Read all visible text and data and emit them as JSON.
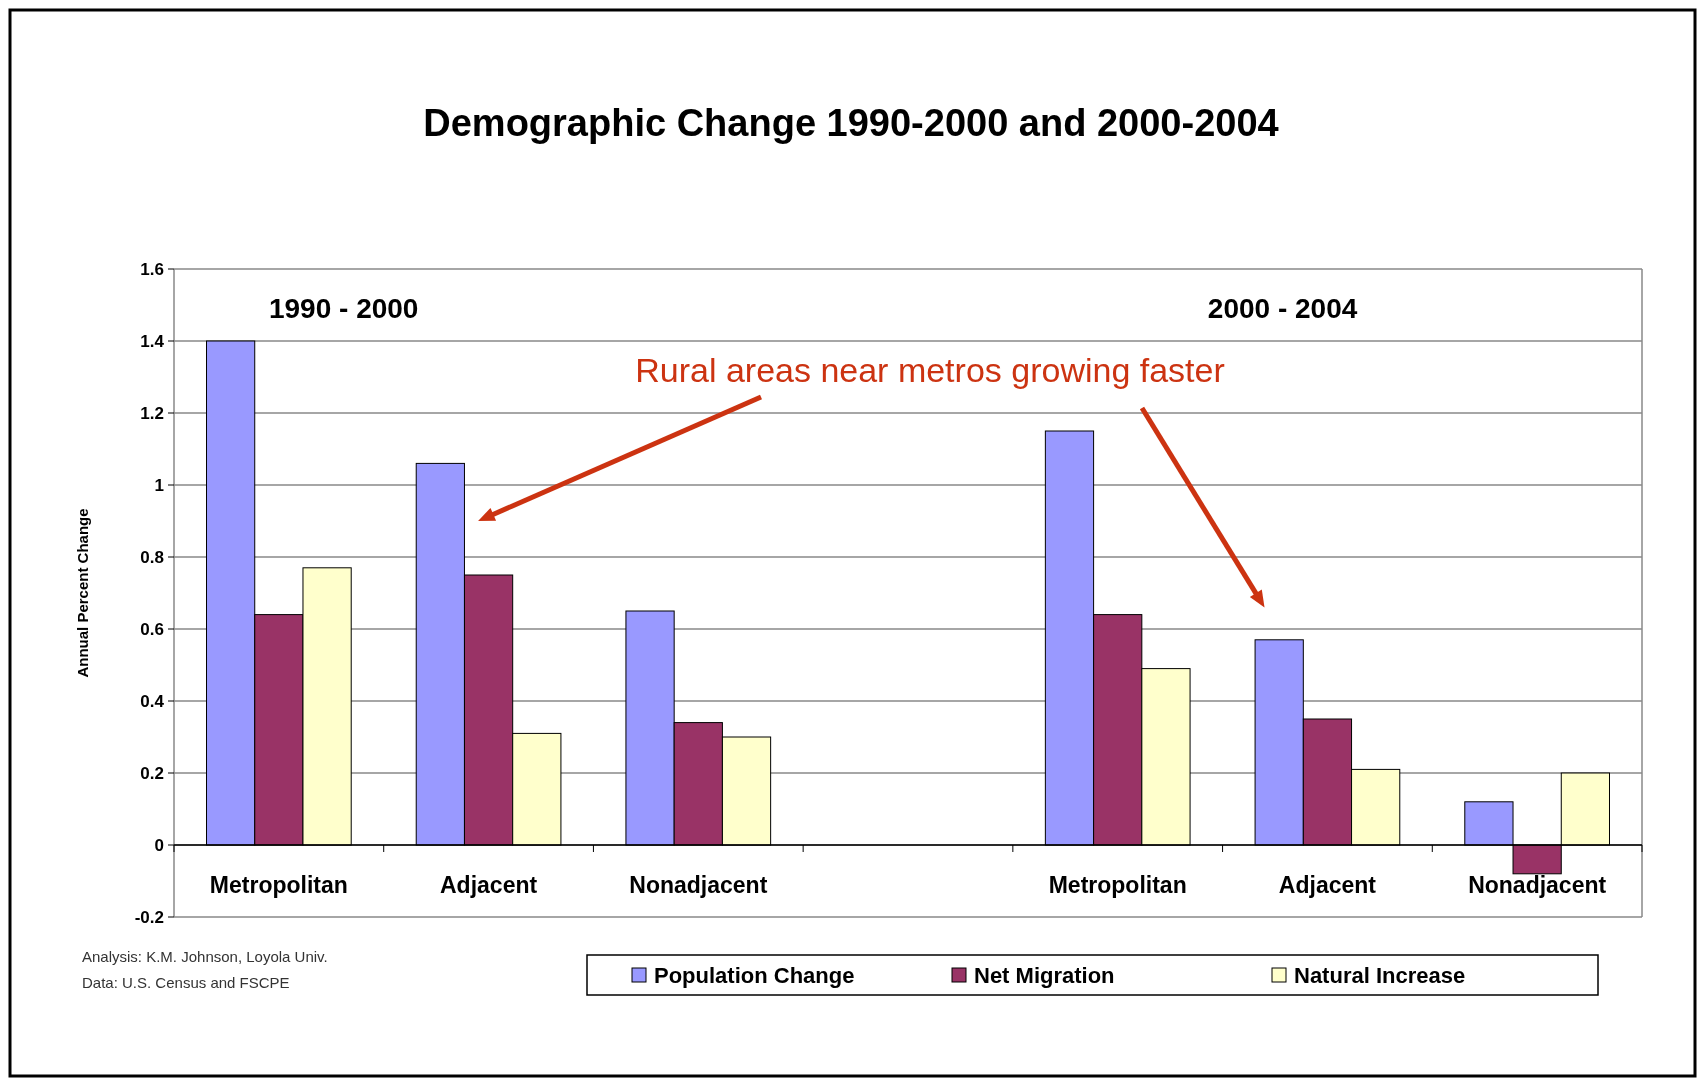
{
  "chart_data": {
    "type": "bar",
    "title": "Demographic Change 1990-2000 and 2000-2004",
    "ylabel": "Annual Percent Change",
    "categories": [
      "Metropolitan",
      "Adjacent",
      "Nonadjacent",
      null,
      "Metropolitan",
      "Adjacent",
      "Nonadjacent"
    ],
    "series": [
      {
        "name": "Population Change",
        "color": "#9999ff",
        "values": [
          1.4,
          1.06,
          0.65,
          null,
          1.15,
          0.57,
          0.12
        ]
      },
      {
        "name": "Net Migration",
        "color": "#993366",
        "values": [
          0.64,
          0.75,
          0.34,
          null,
          0.64,
          0.35,
          -0.08
        ]
      },
      {
        "name": "Natural Increase",
        "color": "#ffffcc",
        "values": [
          0.77,
          0.31,
          0.3,
          null,
          0.49,
          0.21,
          0.2
        ]
      }
    ],
    "ylim": [
      -0.2,
      1.6
    ],
    "yticks": [
      -0.2,
      0,
      0.2,
      0.4,
      0.6,
      0.8,
      1,
      1.2,
      1.4,
      1.6
    ],
    "grid": "y",
    "legend": "bottom",
    "annotations": [
      "1990 - 2000",
      "2000 - 2004",
      "Rural areas near metros growing faster",
      "Analysis: K.M. Johnson, Loyola Univ.",
      "Data: U.S. Census and FSCPE"
    ]
  }
}
